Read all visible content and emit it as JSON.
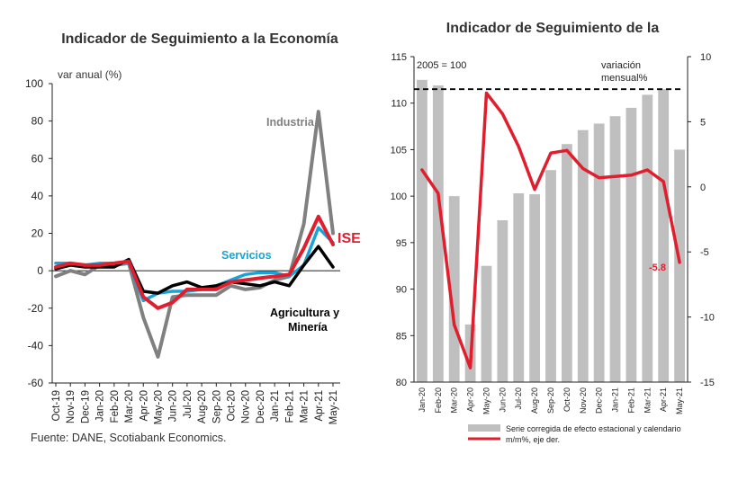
{
  "left_chart": {
    "title": "Indicador de Seguimiento a la Economía",
    "ylabel": "var anual (%)",
    "source": "Fuente: DANE, Scotiabank Economics.",
    "colors": {
      "industria": "#808080",
      "servicios": "#1aa3d6",
      "agricultura": "#000000",
      "ise": "#e01e2d"
    }
  },
  "right_chart": {
    "title": "Indicador de Seguimiento de la",
    "base_label": "2005 = 100",
    "right_axis_label": [
      "variación",
      "mensual%"
    ],
    "callout": "-5.8",
    "legend": [
      "Serie corregida de efecto estacional y calendario",
      "m/m%, eje der."
    ],
    "colors": {
      "bars": "#bfbfbf",
      "line": "#e01e2d",
      "reference": "#000000"
    }
  },
  "chart_data": [
    {
      "type": "line",
      "title": "Indicador de Seguimiento a la Economía",
      "ylabel": "var anual (%)",
      "ylim": [
        -60,
        100
      ],
      "yticks": [
        -60,
        -40,
        -20,
        0,
        20,
        40,
        60,
        80,
        100
      ],
      "categories": [
        "Oct-19",
        "Nov-19",
        "Dec-19",
        "Jan-20",
        "Feb-20",
        "Mar-20",
        "Apr-20",
        "May-20",
        "Jun-20",
        "Jul-20",
        "Aug-20",
        "Sep-20",
        "Oct-20",
        "Nov-20",
        "Dec-20",
        "Jan-21",
        "Feb-21",
        "Mar-21",
        "Apr-21",
        "May-21"
      ],
      "series": [
        {
          "name": "Industria",
          "values": [
            -3,
            0,
            -2,
            3,
            3,
            4,
            -25,
            -46,
            -14,
            -13,
            -13,
            -13,
            -8,
            -10,
            -9,
            -5,
            -3,
            25,
            85,
            20
          ]
        },
        {
          "name": "Servicios",
          "values": [
            4,
            4,
            3,
            4,
            4,
            4,
            -16,
            -12,
            -11,
            -11,
            -10,
            -8,
            -5,
            -2,
            -1,
            -1,
            -3,
            3,
            23,
            15
          ]
        },
        {
          "name": "Agricultura y Minería",
          "values": [
            1,
            3,
            2,
            2,
            2,
            6,
            -11,
            -12,
            -8,
            -6,
            -9,
            -8,
            -6,
            -7,
            -8,
            -6,
            -8,
            3,
            13,
            2
          ]
        },
        {
          "name": "ISE",
          "values": [
            2,
            4,
            3,
            3,
            4,
            5,
            -14,
            -20,
            -17,
            -10,
            -10,
            -10,
            -6,
            -5,
            -4,
            -3,
            -2,
            12,
            29,
            14
          ]
        }
      ]
    },
    {
      "type": "bar",
      "title": "Indicador de Seguimiento de la",
      "categories": [
        "Jan-20",
        "Feb-20",
        "Mar-20",
        "Apr-20",
        "May-20",
        "Jun-20",
        "Jul-20",
        "Aug-20",
        "Sep-20",
        "Oct-20",
        "Nov-20",
        "Dec-20",
        "Jan-21",
        "Feb-21",
        "Mar-21",
        "Apr-21",
        "May-21"
      ],
      "ylim": [
        80,
        115
      ],
      "yticks": [
        80,
        85,
        90,
        95,
        100,
        105,
        110,
        115
      ],
      "y2lim": [
        -15,
        10
      ],
      "y2ticks": [
        -15,
        -10,
        -5,
        0,
        5,
        10
      ],
      "reference_line": 111.5,
      "series": [
        {
          "name": "Serie corregida de efecto estacional y calendario",
          "axis": "left",
          "values": [
            112.5,
            111.9,
            100.0,
            86.2,
            92.5,
            97.4,
            100.3,
            100.2,
            102.8,
            105.6,
            107.1,
            107.8,
            108.6,
            109.5,
            110.9,
            111.5,
            105.0
          ]
        },
        {
          "name": "m/m%, eje der.",
          "axis": "right",
          "values": [
            1.3,
            -0.5,
            -10.6,
            -13.9,
            7.2,
            5.6,
            3.1,
            -0.2,
            2.6,
            2.8,
            1.4,
            0.7,
            0.8,
            0.9,
            1.3,
            0.4,
            -5.8
          ]
        }
      ]
    }
  ]
}
